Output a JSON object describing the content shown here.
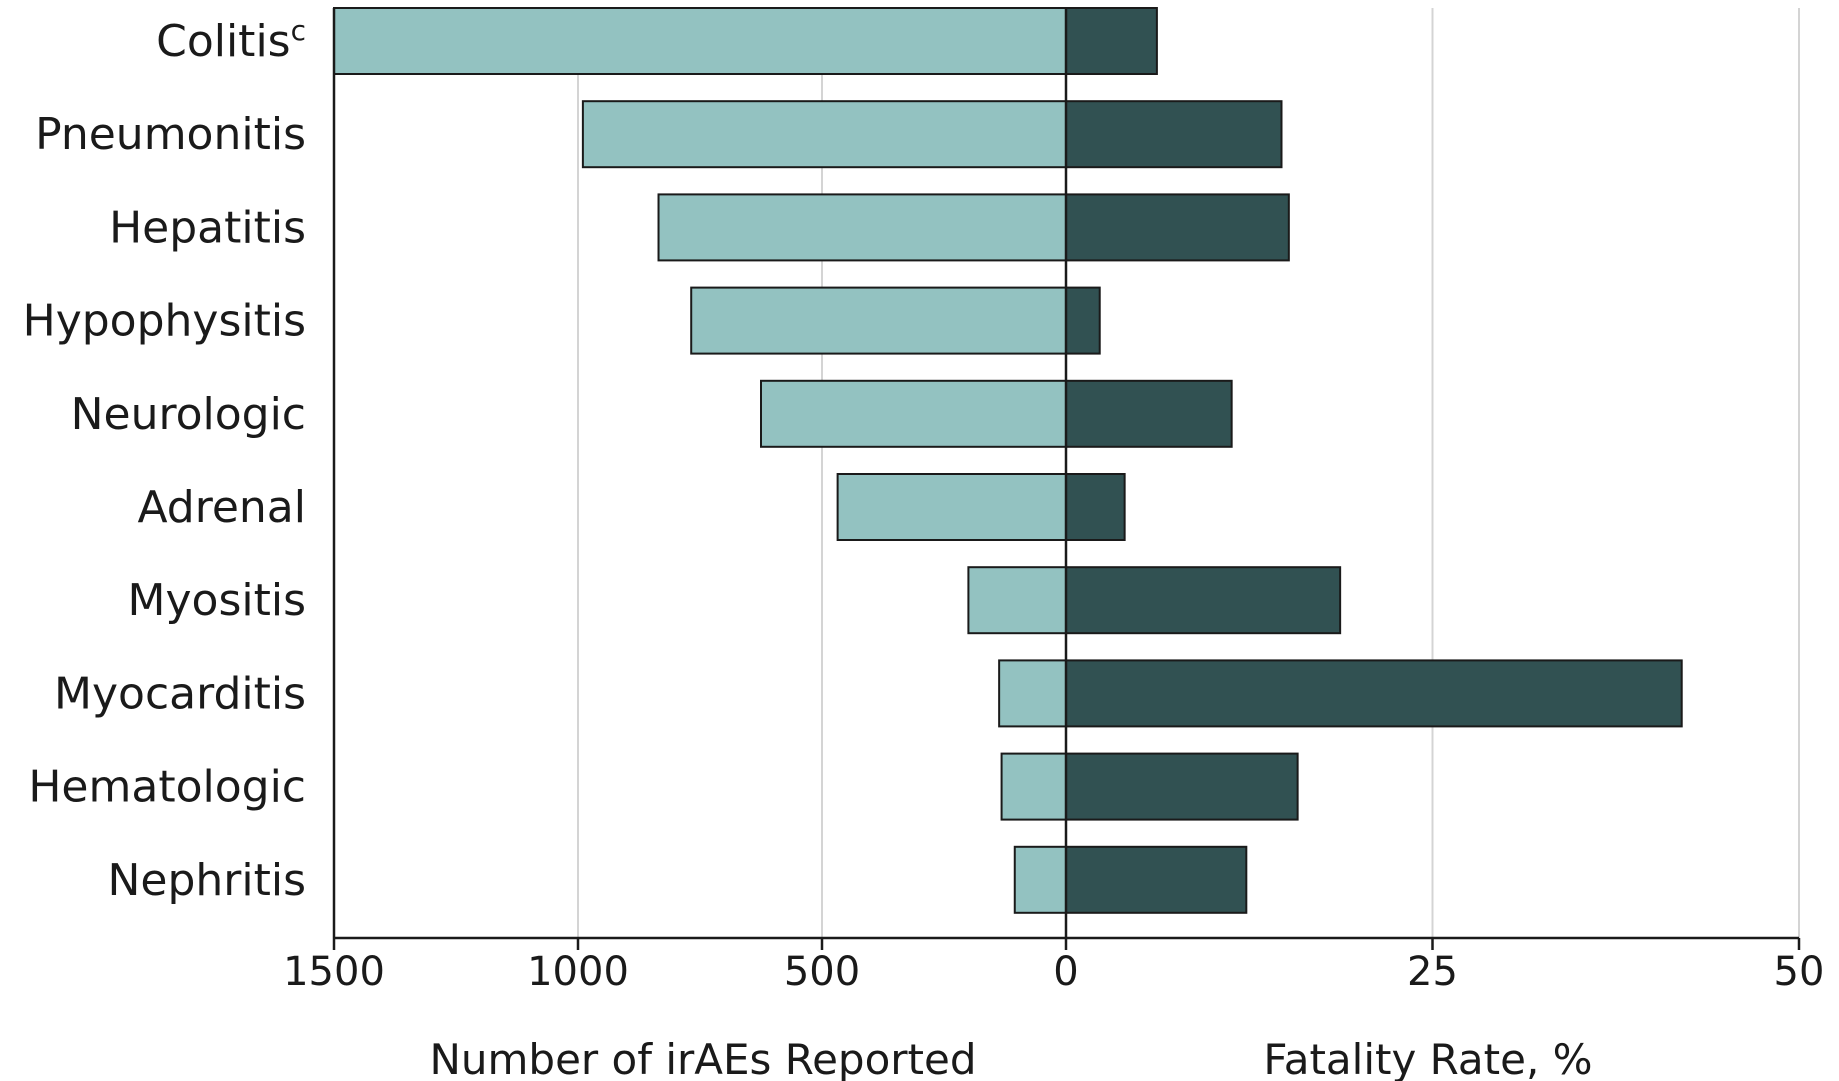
{
  "chart_data": {
    "type": "bar",
    "orientation": "horizontal",
    "categories": [
      "Colitis",
      "Pneumonitis",
      "Hepatitis",
      "Hypophysitis",
      "Neurologic",
      "Adrenal",
      "Myositis",
      "Myocarditis",
      "Hematologic",
      "Nephritis"
    ],
    "superscripts": [
      "c",
      "",
      "",
      "",
      "",
      "",
      "",
      "",
      "",
      ""
    ],
    "series": [
      {
        "panel": "left",
        "values": [
          1500,
          990,
          835,
          768,
          625,
          468,
          200,
          137,
          132,
          105
        ],
        "color": "#93c2c1"
      },
      {
        "panel": "right",
        "values": [
          6.2,
          14.7,
          15.2,
          2.3,
          11.3,
          4.0,
          18.7,
          42.0,
          15.8,
          12.3
        ],
        "color": "#315152"
      }
    ],
    "left_axis": {
      "xlabel": "Number of irAEs Reported",
      "range": [
        1500,
        0
      ],
      "ticks": [
        1500,
        1000,
        500,
        0
      ],
      "tick_labels": [
        "1500",
        "1000",
        "500",
        "0"
      ]
    },
    "right_axis": {
      "xlabel": "Fatality Rate, %",
      "range": [
        0,
        50
      ],
      "ticks": [
        25,
        50
      ],
      "tick_labels": [
        "25",
        "50"
      ]
    },
    "grid": true,
    "grid_color": "#d4d4d4",
    "axis_color": "#1a1a1a"
  }
}
